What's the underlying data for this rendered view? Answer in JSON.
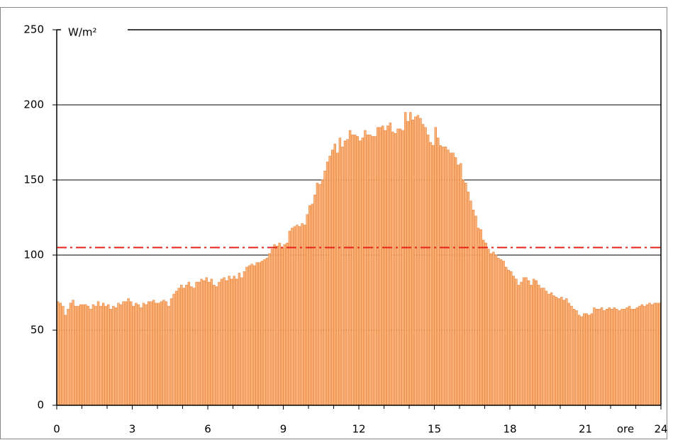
{
  "chart_data": {
    "type": "histogram",
    "y_label": "W/m²",
    "x_label": "ore",
    "bins": [
      0,
      0.1,
      0.2,
      0.3,
      0.4,
      0.5,
      0.6,
      0.7,
      0.8,
      0.9,
      1,
      1.1,
      1.2,
      1.3,
      1.4,
      1.5,
      1.6,
      1.7,
      1.8,
      1.9,
      2,
      2.1,
      2.2,
      2.3,
      2.4,
      2.5,
      2.6,
      2.7,
      2.8,
      2.9,
      3,
      3.1,
      3.2,
      3.3,
      3.4,
      3.5,
      3.6,
      3.7,
      3.8,
      3.9,
      4,
      4.1,
      4.2,
      4.3,
      4.4,
      4.5,
      4.6,
      4.7,
      4.8,
      4.9,
      5,
      5.1,
      5.2,
      5.3,
      5.4,
      5.5,
      5.6,
      5.7,
      5.8,
      5.9,
      6,
      6.1,
      6.2,
      6.3,
      6.4,
      6.5,
      6.6,
      6.7,
      6.8,
      6.9,
      7,
      7.1,
      7.2,
      7.3,
      7.4,
      7.5,
      7.6,
      7.7,
      7.8,
      7.9,
      8,
      8.1,
      8.2,
      8.3,
      8.4,
      8.5,
      8.6,
      8.7,
      8.8,
      8.9,
      9,
      9.1,
      9.2,
      9.3,
      9.4,
      9.5,
      9.6,
      9.7,
      9.8,
      9.9,
      10,
      10.1,
      10.2,
      10.3,
      10.4,
      10.5,
      10.6,
      10.7,
      10.8,
      10.9,
      11,
      11.1,
      11.2,
      11.3,
      11.4,
      11.5,
      11.6,
      11.7,
      11.8,
      11.9,
      12,
      12.1,
      12.2,
      12.3,
      12.4,
      12.5,
      12.6,
      12.7,
      12.8,
      12.9,
      13,
      13.1,
      13.2,
      13.3,
      13.4,
      13.5,
      13.6,
      13.7,
      13.8,
      13.9,
      14,
      14.1,
      14.2,
      14.3,
      14.4,
      14.5,
      14.6,
      14.7,
      14.8,
      14.9,
      15,
      15.1,
      15.2,
      15.3,
      15.4,
      15.5,
      15.6,
      15.7,
      15.8,
      15.9,
      16,
      16.1,
      16.2,
      16.3,
      16.4,
      16.5,
      16.6,
      16.7,
      16.8,
      16.9,
      17,
      17.1,
      17.2,
      17.3,
      17.4,
      17.5,
      17.6,
      17.7,
      17.8,
      17.9,
      18,
      18.1,
      18.2,
      18.3,
      18.4,
      18.5,
      18.6,
      18.7,
      18.8,
      18.9,
      19,
      19.1,
      19.2,
      19.3,
      19.4,
      19.5,
      19.6,
      19.7,
      19.8,
      19.9,
      20,
      20.1,
      20.2,
      20.3,
      20.4,
      20.5,
      20.6,
      20.7,
      20.8,
      20.9,
      21,
      21.1,
      21.2,
      21.3,
      21.4,
      21.5,
      21.6,
      21.7,
      21.8,
      21.9,
      22,
      22.1,
      22.2,
      22.3,
      22.4,
      22.5,
      22.6,
      22.7,
      22.8,
      22.9,
      23,
      23.1,
      23.2,
      23.3,
      23.4,
      23.5,
      23.6,
      23.7,
      23.8,
      23.9,
      24
    ],
    "values": [
      69,
      68,
      66,
      60,
      64,
      68,
      70,
      66,
      66,
      67,
      67,
      67,
      66,
      64,
      67,
      66,
      69,
      66,
      68,
      66,
      67,
      64,
      66,
      65,
      68,
      67,
      69,
      69,
      71,
      69,
      66,
      68,
      67,
      65,
      68,
      67,
      69,
      69,
      70,
      68,
      68,
      69,
      70,
      69,
      66,
      71,
      74,
      76,
      78,
      80,
      78,
      80,
      82,
      79,
      78,
      82,
      82,
      84,
      83,
      85,
      82,
      84,
      80,
      79,
      82,
      84,
      85,
      83,
      86,
      84,
      86,
      84,
      88,
      85,
      89,
      92,
      93,
      94,
      93,
      95,
      95,
      96,
      97,
      98,
      101,
      104,
      107,
      106,
      108,
      105,
      107,
      108,
      116,
      118,
      119,
      120,
      119,
      121,
      120,
      127,
      133,
      134,
      140,
      148,
      147,
      150,
      156,
      162,
      166,
      170,
      174,
      168,
      178,
      172,
      176,
      177,
      183,
      180,
      180,
      179,
      176,
      178,
      183,
      180,
      180,
      179,
      179,
      185,
      185,
      186,
      183,
      186,
      188,
      182,
      181,
      184,
      184,
      183,
      195,
      189,
      195,
      190,
      192,
      193,
      191,
      187,
      185,
      180,
      175,
      173,
      185,
      178,
      173,
      172,
      172,
      170,
      168,
      168,
      165,
      160,
      161,
      150,
      148,
      142,
      136,
      130,
      126,
      118,
      117,
      110,
      108,
      104,
      101,
      102,
      100,
      98,
      97,
      96,
      92,
      90,
      89,
      86,
      84,
      80,
      82,
      85,
      85,
      83,
      80,
      84,
      83,
      80,
      78,
      78,
      76,
      74,
      75,
      73,
      72,
      71,
      72,
      70,
      71,
      68,
      66,
      64,
      63,
      60,
      59,
      61,
      61,
      60,
      61,
      65,
      64,
      64,
      65,
      63,
      64,
      65,
      64,
      65,
      64,
      63,
      64,
      64,
      65,
      66,
      64,
      64,
      65,
      66,
      67,
      66,
      67,
      68,
      67,
      68,
      68,
      68
    ],
    "color": "#fbb37a",
    "edge_color": "#e8843c",
    "xlim": [
      0,
      24
    ],
    "xticks": [
      0,
      3,
      6,
      9,
      12,
      15,
      18,
      21,
      24
    ],
    "xminorticks": [
      1,
      2,
      4,
      5,
      7,
      8,
      10,
      11,
      13,
      14,
      16,
      17,
      19,
      20,
      22,
      23
    ],
    "ylim": [
      0,
      250
    ],
    "yticks": [
      0,
      50,
      100,
      150,
      200,
      250
    ],
    "grid": true,
    "reference_line": {
      "value": 105,
      "color": "#e8231c",
      "style": "dash-dot"
    }
  }
}
